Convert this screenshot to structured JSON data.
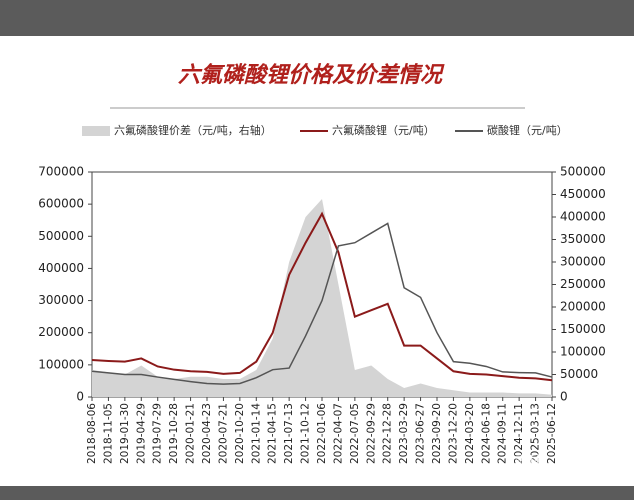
{
  "chart_data": {
    "type": "line",
    "title": "六氟磷酸锂价格及价差情况",
    "categories": [
      "2018-08-06",
      "2018-11-05",
      "2019-01-30",
      "2019-04-29",
      "2019-07-29",
      "2019-10-28",
      "2020-01-21",
      "2020-04-23",
      "2020-07-21",
      "2020-10-20",
      "2021-01-14",
      "2021-04-15",
      "2021-07-13",
      "2021-10-12",
      "2022-01-06",
      "2022-04-07",
      "2022-07-05",
      "2022-09-29",
      "2022-12-28",
      "2023-03-29",
      "2023-06-27",
      "2023-09-20",
      "2023-12-20",
      "2024-03-20",
      "2024-06-18",
      "2024-09-11",
      "2024-12-11",
      "2025-03-13",
      "2025-06-12"
    ],
    "series": [
      {
        "name": "六氟磷酸锂价差（元/吨，右轴）",
        "color": "#d4d4d4",
        "axis": "y2",
        "fill": true,
        "values": [
          60000,
          55000,
          50000,
          70000,
          45000,
          40000,
          45000,
          45000,
          40000,
          40000,
          60000,
          130000,
          300000,
          400000,
          440000,
          250000,
          60000,
          70000,
          40000,
          20000,
          30000,
          20000,
          15000,
          10000,
          10000,
          10000,
          8000,
          8000,
          5000
        ]
      },
      {
        "name": "六氟磷酸锂（元/吨）",
        "color": "#8b1a1a",
        "values": [
          115000,
          112000,
          110000,
          120000,
          95000,
          85000,
          80000,
          78000,
          72000,
          75000,
          110000,
          200000,
          380000,
          480000,
          570000,
          450000,
          250000,
          270000,
          290000,
          160000,
          160000,
          120000,
          80000,
          72000,
          70000,
          65000,
          60000,
          58000,
          52000
        ]
      },
      {
        "name": "碳酸锂（元/吨）",
        "color": "#555555",
        "values": [
          80000,
          75000,
          70000,
          70000,
          62000,
          55000,
          48000,
          42000,
          40000,
          42000,
          60000,
          85000,
          90000,
          190000,
          300000,
          470000,
          480000,
          510000,
          540000,
          340000,
          310000,
          200000,
          110000,
          105000,
          95000,
          78000,
          76000,
          75000,
          62000
        ]
      }
    ],
    "ylim": [
      0,
      700000
    ],
    "yticks": [
      0,
      100000,
      200000,
      300000,
      400000,
      500000,
      600000,
      700000
    ],
    "y2lim": [
      0,
      500000
    ],
    "y2ticks": [
      0,
      50000,
      100000,
      150000,
      200000,
      250000,
      300000,
      350000,
      400000,
      450000,
      500000
    ],
    "watermark": [
      "雪球：张杰cg0",
      "雪球·红杉树森林"
    ]
  }
}
